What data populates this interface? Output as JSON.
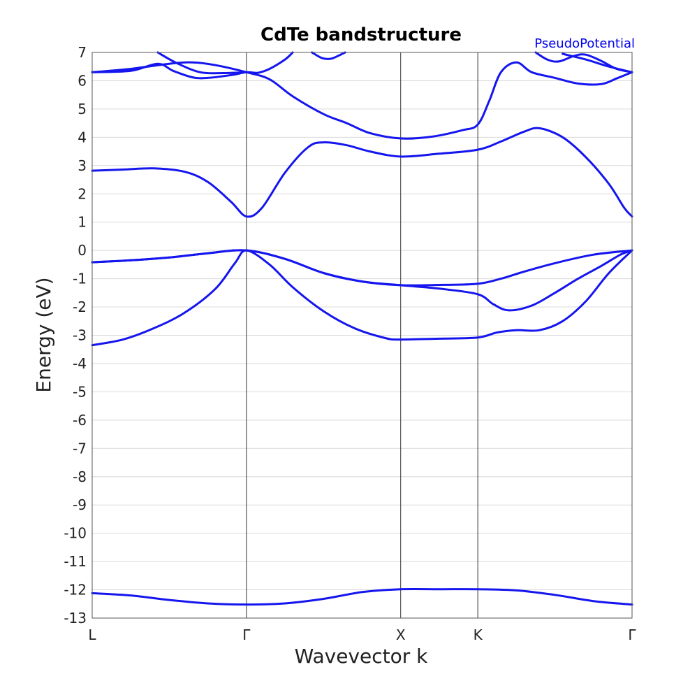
{
  "chart_data": {
    "type": "line",
    "title": "CdTe bandstructure",
    "xlabel": "Wavevector k",
    "ylabel": "Energy (eV)",
    "legend": "PseudoPotential",
    "ylim": [
      -13,
      7
    ],
    "yticks": [
      7,
      6,
      5,
      4,
      3,
      2,
      1,
      0,
      -1,
      -2,
      -3,
      -4,
      -5,
      -6,
      -7,
      -8,
      -9,
      -10,
      -11,
      -12,
      -13
    ],
    "xlim": [
      0,
      7
    ],
    "x_points": [
      {
        "label": "L",
        "x": 0
      },
      {
        "label": "Γ",
        "x": 2
      },
      {
        "label": "X",
        "x": 4
      },
      {
        "label": "K",
        "x": 5
      },
      {
        "label": "Γ",
        "x": 7
      }
    ],
    "series_color": "#1515ee",
    "series": [
      {
        "points": [
          [
            0,
            -12.12
          ],
          [
            0.5,
            -12.2
          ],
          [
            1,
            -12.36
          ],
          [
            1.5,
            -12.48
          ],
          [
            2,
            -12.52
          ],
          [
            2.5,
            -12.48
          ],
          [
            3,
            -12.32
          ],
          [
            3.5,
            -12.08
          ],
          [
            4,
            -11.98
          ],
          [
            4.5,
            -11.98
          ],
          [
            5,
            -11.98
          ],
          [
            5.5,
            -12.02
          ],
          [
            6,
            -12.18
          ],
          [
            6.5,
            -12.4
          ],
          [
            7,
            -12.52
          ]
        ]
      },
      {
        "points": [
          [
            0,
            -3.35
          ],
          [
            0.4,
            -3.15
          ],
          [
            0.8,
            -2.75
          ],
          [
            1.2,
            -2.2
          ],
          [
            1.6,
            -1.35
          ],
          [
            1.85,
            -0.45
          ],
          [
            2,
            0
          ],
          [
            2.3,
            -0.5
          ],
          [
            2.6,
            -1.3
          ],
          [
            3,
            -2.15
          ],
          [
            3.4,
            -2.75
          ],
          [
            3.8,
            -3.1
          ],
          [
            4,
            -3.15
          ],
          [
            4.5,
            -3.12
          ],
          [
            5,
            -3.08
          ],
          [
            5.25,
            -2.9
          ],
          [
            5.5,
            -2.82
          ],
          [
            5.8,
            -2.82
          ],
          [
            6.1,
            -2.5
          ],
          [
            6.4,
            -1.8
          ],
          [
            6.7,
            -0.8
          ],
          [
            7,
            0
          ]
        ]
      },
      {
        "points": [
          [
            0,
            -0.42
          ],
          [
            0.5,
            -0.35
          ],
          [
            1,
            -0.25
          ],
          [
            1.5,
            -0.1
          ],
          [
            2,
            0
          ],
          [
            2.5,
            -0.3
          ],
          [
            3,
            -0.8
          ],
          [
            3.5,
            -1.1
          ],
          [
            4,
            -1.23
          ],
          [
            4.5,
            -1.22
          ],
          [
            5,
            -1.18
          ],
          [
            5.3,
            -1.0
          ],
          [
            5.6,
            -0.75
          ],
          [
            6,
            -0.45
          ],
          [
            6.5,
            -0.15
          ],
          [
            7,
            0
          ]
        ]
      },
      {
        "points": [
          [
            0,
            -0.42
          ],
          [
            0.5,
            -0.35
          ],
          [
            1,
            -0.25
          ],
          [
            1.5,
            -0.1
          ],
          [
            2,
            0
          ],
          [
            2.5,
            -0.3
          ],
          [
            3,
            -0.8
          ],
          [
            3.5,
            -1.1
          ],
          [
            4,
            -1.23
          ],
          [
            4.5,
            -1.35
          ],
          [
            5,
            -1.55
          ],
          [
            5.2,
            -1.9
          ],
          [
            5.4,
            -2.12
          ],
          [
            5.7,
            -1.95
          ],
          [
            6,
            -1.5
          ],
          [
            6.3,
            -1.0
          ],
          [
            6.6,
            -0.55
          ],
          [
            6.85,
            -0.15
          ],
          [
            7,
            0
          ]
        ]
      },
      {
        "points": [
          [
            0,
            2.82
          ],
          [
            0.4,
            2.86
          ],
          [
            0.8,
            2.9
          ],
          [
            1.2,
            2.78
          ],
          [
            1.5,
            2.42
          ],
          [
            1.8,
            1.72
          ],
          [
            2,
            1.2
          ],
          [
            2.2,
            1.5
          ],
          [
            2.5,
            2.75
          ],
          [
            2.8,
            3.65
          ],
          [
            3,
            3.82
          ],
          [
            3.3,
            3.72
          ],
          [
            3.6,
            3.5
          ],
          [
            4,
            3.32
          ],
          [
            4.5,
            3.42
          ],
          [
            5,
            3.56
          ],
          [
            5.3,
            3.85
          ],
          [
            5.6,
            4.2
          ],
          [
            5.8,
            4.32
          ],
          [
            6.1,
            4.0
          ],
          [
            6.4,
            3.3
          ],
          [
            6.7,
            2.35
          ],
          [
            6.9,
            1.5
          ],
          [
            7,
            1.2
          ]
        ]
      },
      {
        "points": [
          [
            0,
            6.3
          ],
          [
            0.5,
            6.42
          ],
          [
            1,
            6.6
          ],
          [
            1.3,
            6.65
          ],
          [
            1.6,
            6.55
          ],
          [
            2,
            6.3
          ],
          [
            2.3,
            6.05
          ],
          [
            2.6,
            5.45
          ],
          [
            3,
            4.82
          ],
          [
            3.3,
            4.5
          ],
          [
            3.6,
            4.15
          ],
          [
            4,
            3.96
          ],
          [
            4.4,
            4.02
          ],
          [
            4.8,
            4.25
          ],
          [
            5,
            4.45
          ],
          [
            5.15,
            5.3
          ],
          [
            5.3,
            6.3
          ],
          [
            5.5,
            6.65
          ],
          [
            5.7,
            6.3
          ],
          [
            6,
            6.1
          ],
          [
            6.3,
            5.9
          ],
          [
            6.6,
            5.88
          ],
          [
            6.8,
            6.08
          ],
          [
            7,
            6.3
          ]
        ]
      },
      {
        "points": [
          [
            0,
            6.3
          ],
          [
            0.5,
            6.35
          ],
          [
            0.85,
            6.6
          ],
          [
            1.05,
            6.35
          ],
          [
            1.3,
            6.12
          ],
          [
            1.5,
            6.1
          ],
          [
            1.8,
            6.2
          ],
          [
            2,
            6.3
          ],
          [
            2.15,
            6.28
          ],
          [
            2.3,
            6.42
          ],
          [
            2.5,
            6.75
          ],
          [
            2.6,
            7.0
          ]
        ]
      },
      {
        "points": [
          [
            0.85,
            7.0
          ],
          [
            1.1,
            6.62
          ],
          [
            1.4,
            6.3
          ],
          [
            1.7,
            6.27
          ],
          [
            2,
            6.3
          ]
        ]
      },
      {
        "points": [
          [
            2.85,
            7.0
          ],
          [
            2.98,
            6.8
          ],
          [
            3.1,
            6.78
          ],
          [
            3.22,
            6.92
          ],
          [
            3.28,
            7.0
          ]
        ]
      },
      {
        "points": [
          [
            5.75,
            7.0
          ],
          [
            5.9,
            6.75
          ],
          [
            6.05,
            6.68
          ],
          [
            6.25,
            6.88
          ],
          [
            6.4,
            6.92
          ],
          [
            6.6,
            6.7
          ],
          [
            6.8,
            6.42
          ],
          [
            7,
            6.3
          ]
        ]
      },
      {
        "points": [
          [
            6.1,
            6.95
          ],
          [
            6.4,
            6.75
          ],
          [
            6.7,
            6.5
          ],
          [
            7,
            6.3
          ]
        ]
      }
    ]
  }
}
